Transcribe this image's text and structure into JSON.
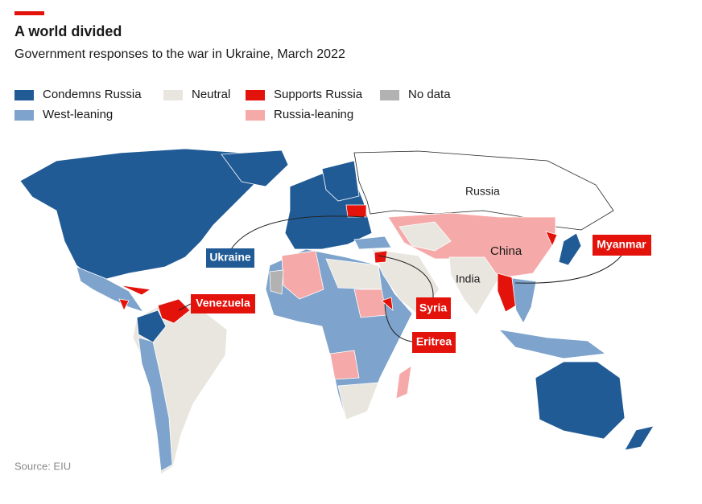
{
  "header": {
    "title": "A world divided",
    "subtitle": "Government responses to the war in Ukraine, March 2022"
  },
  "legend": [
    {
      "label": "Condemns Russia",
      "color": "#215b96"
    },
    {
      "label": "West-leaning",
      "color": "#7ea3cc"
    },
    {
      "label": "Neutral",
      "color": "#e9e6df"
    },
    {
      "label": "Supports Russia",
      "color": "#e3120b"
    },
    {
      "label": "Russia-leaning",
      "color": "#f6a9a9"
    },
    {
      "label": "No data",
      "color": "#b2b2b2"
    }
  ],
  "map_labels": [
    "Russia",
    "China",
    "India"
  ],
  "callouts": [
    "Ukraine",
    "Venezuela",
    "Myanmar",
    "Syria",
    "Eritrea"
  ],
  "source": "Source: EIU"
}
